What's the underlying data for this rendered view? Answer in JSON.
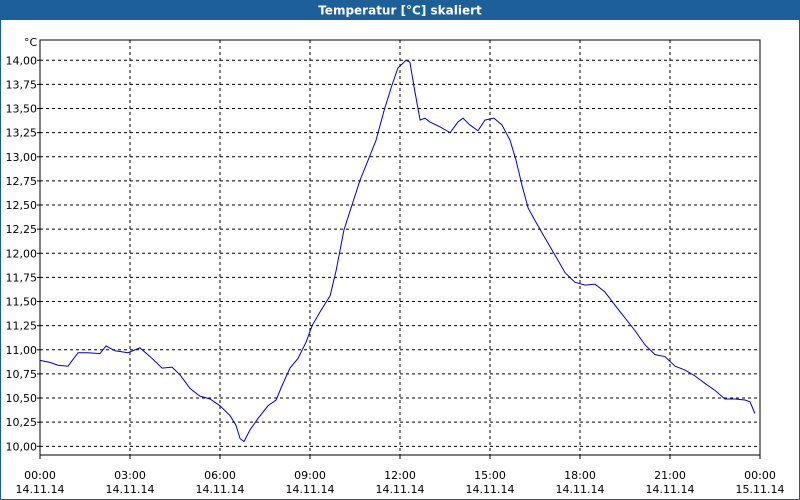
{
  "chart_data": {
    "type": "line",
    "title": "Temperatur [°C] skaliert",
    "ylabel": "°C",
    "x": [
      0,
      0.33,
      0.6,
      0.93,
      1.27,
      1.6,
      2,
      2.2,
      2.5,
      2.93,
      3.33,
      3.67,
      4.07,
      4.4,
      4.67,
      5,
      5.33,
      5.67,
      6,
      6.33,
      6.53,
      6.67,
      6.8,
      7,
      7.27,
      7.6,
      7.87,
      8.07,
      8.33,
      8.6,
      8.87,
      9.07,
      9.33,
      9.67,
      9.87,
      10.13,
      10.4,
      10.67,
      10.93,
      11.2,
      11.47,
      11.73,
      11.93,
      12.2,
      12.33,
      12.5,
      12.67,
      12.83,
      13,
      13.33,
      13.67,
      13.93,
      14.1,
      14.33,
      14.6,
      14.83,
      15.13,
      15.4,
      15.67,
      15.87,
      16.07,
      16.27,
      16.5,
      16.83,
      17.17,
      17.5,
      17.83,
      18.17,
      18.5,
      18.83,
      19.17,
      19.5,
      19.83,
      20.17,
      20.5,
      20.83,
      21.17,
      21.5,
      21.83,
      22.17,
      22.5,
      22.83,
      23.17,
      23.5,
      23.67,
      23.83
    ],
    "series": [
      {
        "color": "#0000cc",
        "values": [
          10.89,
          10.87,
          10.84,
          10.83,
          10.97,
          10.97,
          10.96,
          11.04,
          10.99,
          10.97,
          11.02,
          10.93,
          10.81,
          10.82,
          10.74,
          10.6,
          10.52,
          10.49,
          10.42,
          10.32,
          10.22,
          10.08,
          10.05,
          10.17,
          10.29,
          10.42,
          10.48,
          10.63,
          10.81,
          10.91,
          11.08,
          11.25,
          11.39,
          11.56,
          11.82,
          12.24,
          12.5,
          12.76,
          12.96,
          13.17,
          13.48,
          13.74,
          13.92,
          14.0,
          13.98,
          13.67,
          13.38,
          13.4,
          13.36,
          13.31,
          13.25,
          13.36,
          13.4,
          13.33,
          13.27,
          13.38,
          13.4,
          13.33,
          13.17,
          12.96,
          12.7,
          12.47,
          12.34,
          12.16,
          11.98,
          11.8,
          11.7,
          11.67,
          11.68,
          11.6,
          11.46,
          11.33,
          11.2,
          11.05,
          10.95,
          10.93,
          10.83,
          10.79,
          10.73,
          10.65,
          10.58,
          10.49,
          10.49,
          10.48,
          10.46,
          10.34
        ]
      }
    ],
    "xlim": [
      0,
      24
    ],
    "xticks": [
      {
        "value": 0,
        "label": "00:00\n14.11.14"
      },
      {
        "value": 3,
        "label": "03:00\n14.11.14"
      },
      {
        "value": 6,
        "label": "06:00\n14.11.14"
      },
      {
        "value": 9,
        "label": "09:00\n14.11.14"
      },
      {
        "value": 12,
        "label": "12:00\n14.11.14"
      },
      {
        "value": 15,
        "label": "15:00\n14.11.14"
      },
      {
        "value": 18,
        "label": "18:00\n14.11.14"
      },
      {
        "value": 21,
        "label": "21:00\n14.11.14"
      },
      {
        "value": 24,
        "label": "00:00\n15.11.14"
      }
    ],
    "ylim": [
      9.91,
      14.21
    ],
    "yticks": [
      {
        "value": 10,
        "label": "10,00"
      },
      {
        "value": 10.25,
        "label": "10,25"
      },
      {
        "value": 10.5,
        "label": "10,50"
      },
      {
        "value": 10.75,
        "label": "10,75"
      },
      {
        "value": 11,
        "label": "11,00"
      },
      {
        "value": 11.25,
        "label": "11,25"
      },
      {
        "value": 11.5,
        "label": "11,50"
      },
      {
        "value": 11.75,
        "label": "11,75"
      },
      {
        "value": 12,
        "label": "12,00"
      },
      {
        "value": 12.25,
        "label": "12,25"
      },
      {
        "value": 12.5,
        "label": "12,50"
      },
      {
        "value": 12.75,
        "label": "12,75"
      },
      {
        "value": 13,
        "label": "13,00"
      },
      {
        "value": 13.25,
        "label": "13,25"
      },
      {
        "value": 13.5,
        "label": "13,50"
      },
      {
        "value": 13.75,
        "label": "13,75"
      },
      {
        "value": 14,
        "label": "14,00"
      }
    ],
    "grid": true
  }
}
